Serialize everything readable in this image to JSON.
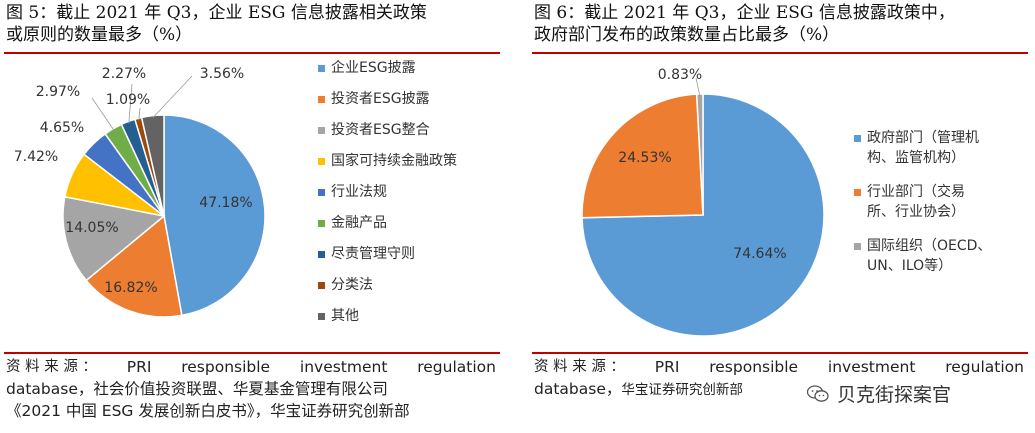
{
  "fig5": {
    "title_line1": "图 5：截止 2021 年 Q3，企业 ESG 信息披露相关政策",
    "title_line2": "或原则的数量最多（%）",
    "source_label": "资 料 来 源 ：",
    "source_words": [
      "PRI",
      "responsible",
      "investment",
      "regulation"
    ],
    "source_line2": "database，社会价值投资联盟、华夏基金管理有限公司",
    "source_line3": "《2021 中国 ESG 发展创新白皮书》，华宝证券研究创新部",
    "chart_data": {
      "type": "pie",
      "slices": [
        {
          "label": "企业ESG披露",
          "value": 47.18,
          "value_label": "47.18%",
          "color": "#5b9bd5"
        },
        {
          "label": "投资者ESG披露",
          "value": 16.82,
          "value_label": "16.82%",
          "color": "#ed7d31"
        },
        {
          "label": "投资者ESG整合",
          "value": 14.05,
          "value_label": "14.05%",
          "color": "#a5a5a5"
        },
        {
          "label": "国家可持续金融政策",
          "value": 7.42,
          "value_label": "7.42%",
          "color": "#ffc000"
        },
        {
          "label": "行业法规",
          "value": 4.65,
          "value_label": "4.65%",
          "color": "#4472c4"
        },
        {
          "label": "金融产品",
          "value": 2.97,
          "value_label": "2.97%",
          "color": "#70ad47"
        },
        {
          "label": "尽责管理守则",
          "value": 2.27,
          "value_label": "2.27%",
          "color": "#255e91"
        },
        {
          "label": "分类法",
          "value": 1.09,
          "value_label": "1.09%",
          "color": "#9e480e"
        },
        {
          "label": "其他",
          "value": 3.56,
          "value_label": "3.56%",
          "color": "#636363"
        }
      ],
      "legend_position": "right"
    }
  },
  "fig6": {
    "title_line1": "图 6：截止 2021 年 Q3，企业 ESG 信息披露政策中，",
    "title_line2": "政府部门发布的政策数量占比最多（%）",
    "source_label": "资 料 来 源 ：",
    "source_words": [
      "PRI",
      "responsible",
      "investment",
      "regulation"
    ],
    "source_line2a": "database，",
    "source_line2b": "华宝证券研究创新部",
    "chart_data": {
      "type": "pie",
      "slices": [
        {
          "label_line1": "政府部门（管理机",
          "label_line2": "构、监管机构）",
          "value": 74.64,
          "value_label": "74.64%",
          "color": "#5b9bd5"
        },
        {
          "label_line1": "行业部门（交易",
          "label_line2": "所、行业协会）",
          "value": 24.53,
          "value_label": "24.53%",
          "color": "#ed7d31"
        },
        {
          "label_line1": "国际组织（OECD、",
          "label_line2": "UN、ILO等）",
          "value": 0.83,
          "value_label": "0.83%",
          "color": "#a5a5a5"
        }
      ],
      "legend_position": "right"
    }
  },
  "watermark": {
    "text": "贝克街探案官",
    "icon": "wechat-icon"
  }
}
